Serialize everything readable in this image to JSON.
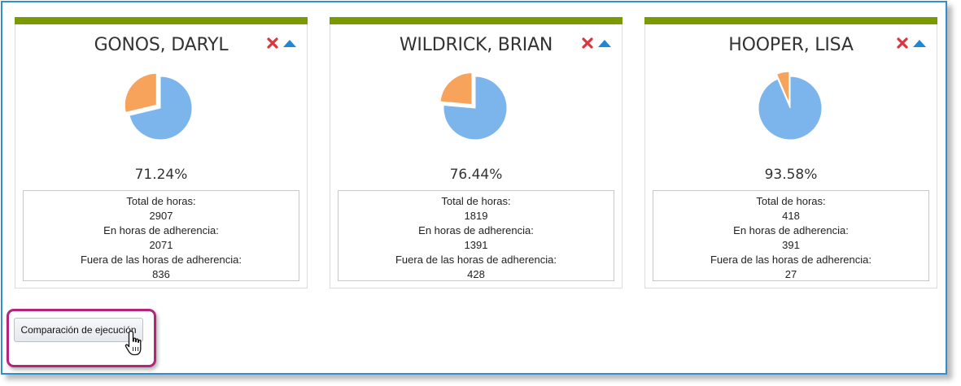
{
  "cards": [
    {
      "name": "GONOS, DARYL",
      "percent_label": "71.24%",
      "adherence_fraction": 0.7124,
      "total_label": "Total de horas:",
      "total": "2907",
      "in_label": "En horas de adherencia:",
      "in": "2071",
      "out_label": "Fuera de las horas de adherencia:",
      "out": "836"
    },
    {
      "name": "WILDRICK, BRIAN",
      "percent_label": "76.44%",
      "adherence_fraction": 0.7644,
      "total_label": "Total de horas:",
      "total": "1819",
      "in_label": "En horas de adherencia:",
      "in": "1391",
      "out_label": "Fuera de las horas de adherencia:",
      "out": "428"
    },
    {
      "name": "HOOPER, LISA",
      "percent_label": "93.58%",
      "adherence_fraction": 0.9358,
      "total_label": "Total de horas:",
      "total": "418",
      "in_label": "En horas de adherencia:",
      "in": "391",
      "out_label": "Fuera de las horas de adherencia:",
      "out": "27"
    }
  ],
  "compare_button": {
    "label": "Comparación de ejecución"
  },
  "colors": {
    "card_bar": "#7a9a01",
    "pie_in": "#7cb5ec",
    "pie_out": "#f7a35c",
    "remove_icon": "#d9363e",
    "collapse_icon": "#1e88d8",
    "highlight_border": "#b3247a",
    "frame_border": "#2f8fd0"
  },
  "icons": {
    "remove": "close-x-icon",
    "collapse": "triangle-up-icon",
    "cursor": "hand-pointer-icon"
  }
}
